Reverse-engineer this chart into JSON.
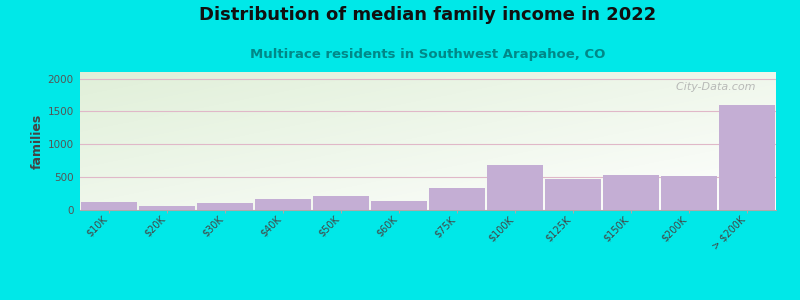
{
  "title": "Distribution of median family income in 2022",
  "subtitle": "Multirace residents in Southwest Arapahoe, CO",
  "categories": [
    "$10K",
    "$20K",
    "$30K",
    "$40K",
    "$50K",
    "$60K",
    "$75K",
    "$100K",
    "$125K",
    "$150K",
    "$200K",
    "> $200K"
  ],
  "values": [
    120,
    55,
    105,
    175,
    210,
    140,
    330,
    690,
    465,
    530,
    520,
    1600
  ],
  "bar_color": "#c4aed4",
  "background_color": "#00e8e8",
  "title_fontsize": 13,
  "subtitle_fontsize": 9.5,
  "ylabel": "families",
  "ylim": [
    0,
    2100
  ],
  "yticks": [
    0,
    500,
    1000,
    1500,
    2000
  ],
  "watermark": "  City-Data.com",
  "grid_color": "#e0b8c8",
  "subtitle_color": "#008888"
}
